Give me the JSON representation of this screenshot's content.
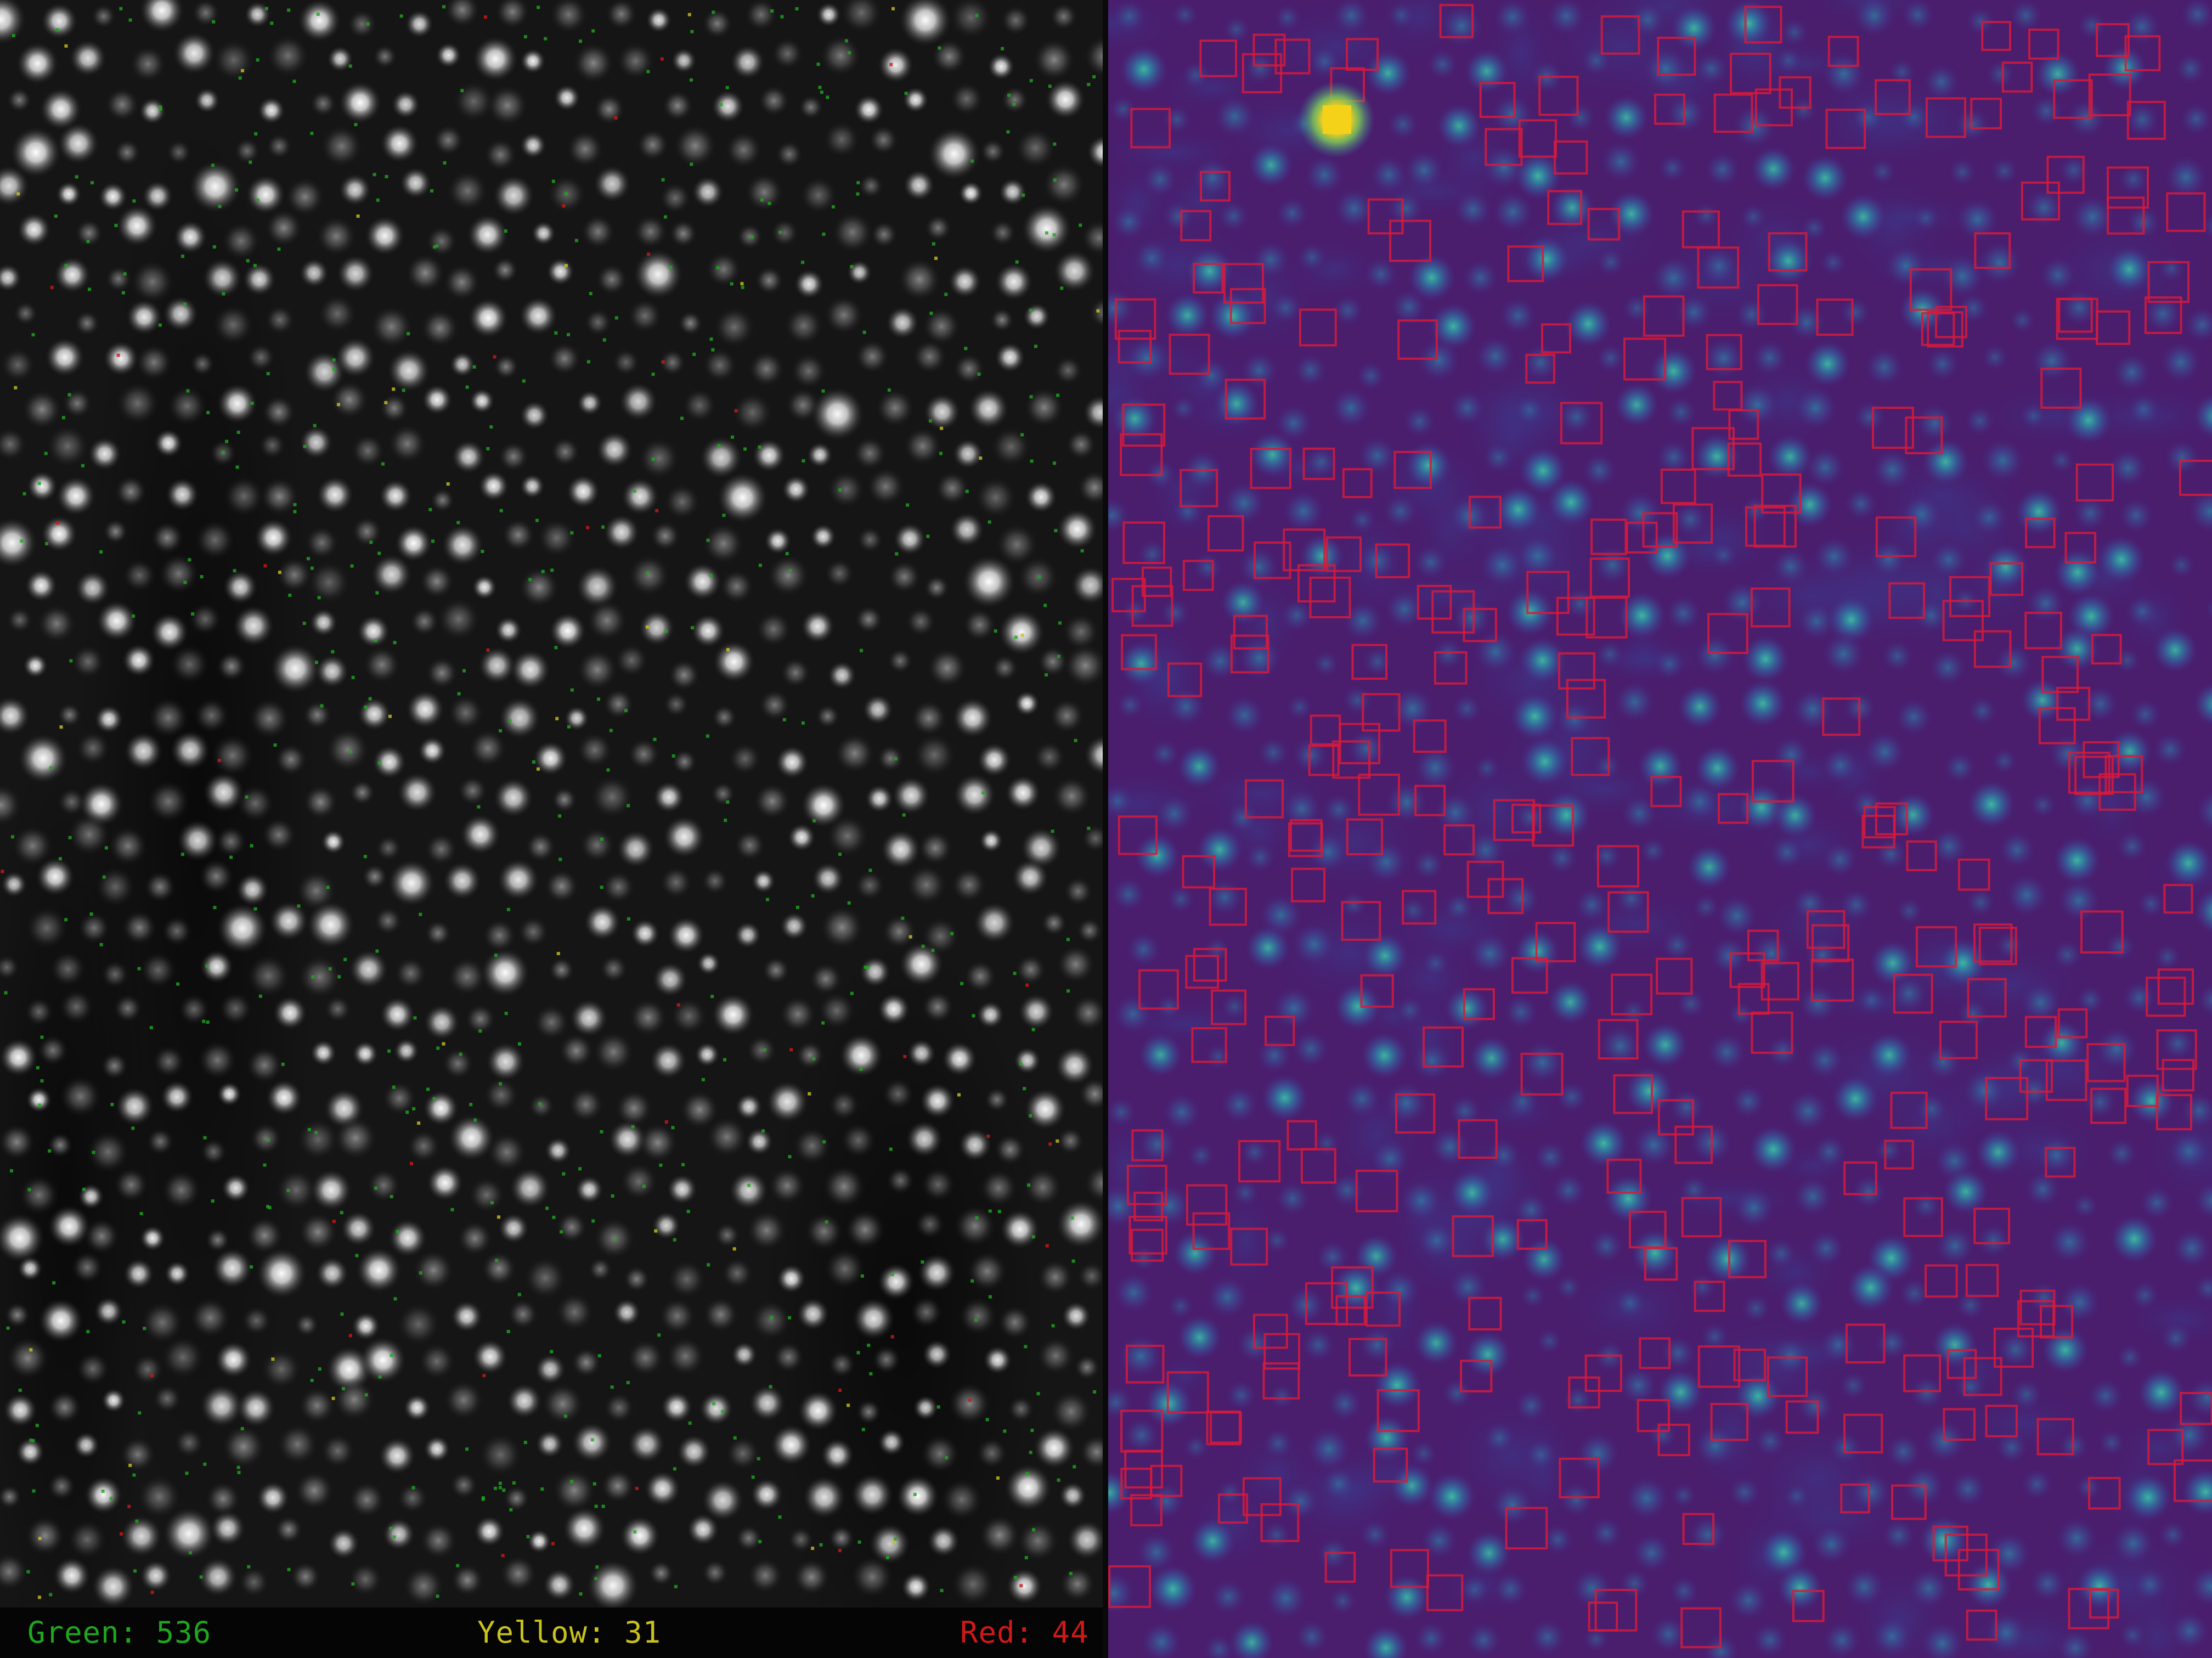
{
  "legend": {
    "green": {
      "text": "Green: 536",
      "label": "Green",
      "count": 536,
      "color": "#1fa61f"
    },
    "yellow": {
      "text": "Yellow: 31",
      "label": "Yellow",
      "count": 31,
      "color": "#c9c21c"
    },
    "red": {
      "text": "Red: 44",
      "label": "Red",
      "count": 44,
      "color": "#d11818"
    }
  },
  "left_image": {
    "kind": "grayscale fluorescence cell microscopy",
    "background_color": "#141414",
    "cell_color": "#f2f2f2",
    "marker_colors": [
      "#1fa61f",
      "#c9c21c",
      "#d11818"
    ]
  },
  "right_image": {
    "kind": "viridis-style intensity heatmap with detection boxes",
    "background_color": "#4b1c6e",
    "cell_glow_color": "#2a8f9a",
    "hotspot_color": "#f4d21a",
    "box_color": "#d61a3c"
  }
}
